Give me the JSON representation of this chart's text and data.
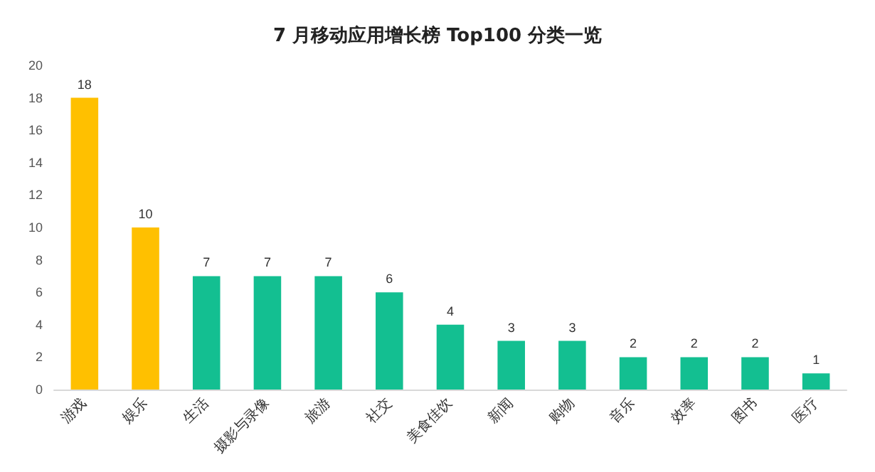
{
  "chart_data": {
    "type": "bar",
    "title": "7 月移动应用增长榜 Top100 分类一览",
    "categories": [
      "游戏",
      "娱乐",
      "生活",
      "摄影与录像",
      "旅游",
      "社交",
      "美食佳饮",
      "新闻",
      "购物",
      "音乐",
      "效率",
      "图书",
      "医疗"
    ],
    "values": [
      18,
      10,
      7,
      7,
      7,
      6,
      4,
      3,
      3,
      2,
      2,
      2,
      1
    ],
    "colors": [
      "#ffc000",
      "#ffc000",
      "#13bf91",
      "#13bf91",
      "#13bf91",
      "#13bf91",
      "#13bf91",
      "#13bf91",
      "#13bf91",
      "#13bf91",
      "#13bf91",
      "#13bf91",
      "#13bf91"
    ],
    "ylim": [
      0,
      20
    ],
    "yticks": [
      0,
      2,
      4,
      6,
      8,
      10,
      12,
      14,
      16,
      18,
      20
    ],
    "grid": false,
    "data_labels": true
  }
}
